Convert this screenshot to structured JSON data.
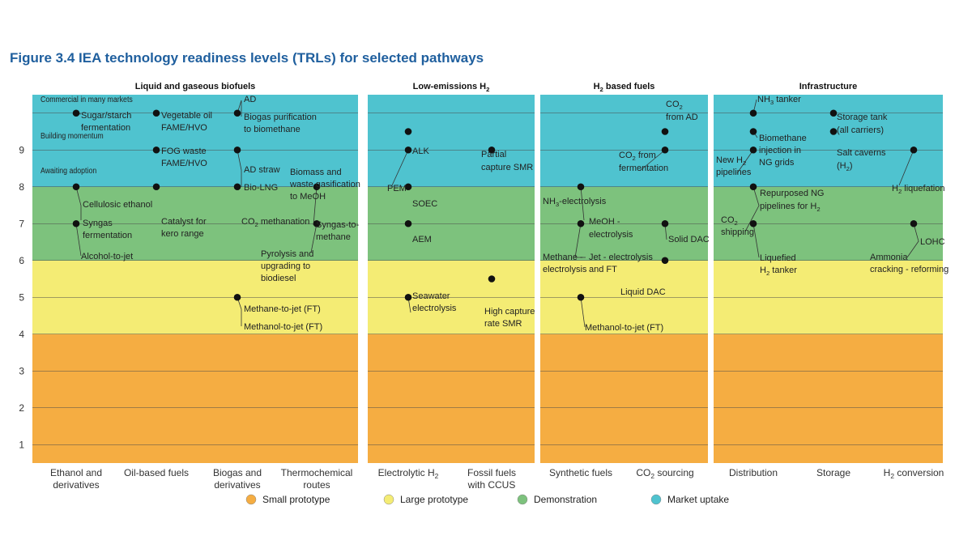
{
  "figure_title": "Figure 3.4  IEA technology readiness levels (TRLs) for selected pathways",
  "chart_data": {
    "type": "scatter",
    "ylim": [
      0.5,
      10.5
    ],
    "yticks": [
      1,
      2,
      3,
      4,
      5,
      6,
      7,
      8,
      9
    ],
    "grid": true,
    "bands": [
      {
        "name": "Small prototype",
        "from": 0.5,
        "to": 4.0,
        "color": "#f5ad42"
      },
      {
        "name": "Large prototype",
        "from": 4.0,
        "to": 6.0,
        "color": "#f4ec74"
      },
      {
        "name": "Demonstration",
        "from": 6.0,
        "to": 8.0,
        "color": "#7dc27d"
      },
      {
        "name": "Market uptake",
        "from": 8.0,
        "to": 10.5,
        "color": "#4fc3cf"
      }
    ],
    "level_labels": [
      {
        "text": "Commercial in many markets",
        "y": 10.2
      },
      {
        "text": "Building momentum",
        "y": 9.25
      },
      {
        "text": "Awaiting adoption",
        "y": 9.25
      }
    ],
    "panels": [
      {
        "title": "Liquid and gaseous biofuels",
        "categories": [
          "Ethanol and\nderivatives",
          "Oil-based fuels",
          "Biogas and\nderivatives",
          "Thermochemical\nroutes"
        ],
        "points": [
          {
            "cat": 0,
            "y": 10.0,
            "label": "Sugar/starch\nfermentation"
          },
          {
            "cat": 0,
            "y": 8.0,
            "label": "Cellulosic ethanol\nSyngas\nfermentation"
          },
          {
            "cat": 0,
            "y": 7.0,
            "label": "Alcohol-to-jet"
          },
          {
            "cat": 1,
            "y": 10.0,
            "label": "Vegetable oil\nFAME/HVO"
          },
          {
            "cat": 1,
            "y": 9.0,
            "label": "FOG waste\nFAME/HVO"
          },
          {
            "cat": 1,
            "y": 8.0,
            "label": "Catalyst for\nkero range"
          },
          {
            "cat": 2,
            "y": 10.0,
            "label": "AD\nBiogas purification\nto biomethane"
          },
          {
            "cat": 2,
            "y": 9.0,
            "label": "AD straw\nBio-LNG"
          },
          {
            "cat": 2,
            "y": 8.0,
            "label": "CO2 methanation"
          },
          {
            "cat": 2,
            "y": 5.0,
            "label": "Methane-to-jet (FT)\nMethanol-to-jet (FT)"
          },
          {
            "cat": 3,
            "y": 8.0,
            "label": "Biomass and\nwaste gasification\nto MeOH\nSyngas-to-\nmethane"
          },
          {
            "cat": 3,
            "y": 7.0,
            "label": "Pyrolysis and\nupgrading to\nbiodiesel"
          }
        ]
      },
      {
        "title": "Low-emissions H2",
        "categories": [
          "Electrolytic H2",
          "Fossil fuels\nwith CCUS"
        ],
        "points": [
          {
            "cat": 0,
            "y": 9.5,
            "label": "ALK"
          },
          {
            "cat": 0,
            "y": 9.0,
            "label": "PEM"
          },
          {
            "cat": 0,
            "y": 8.0,
            "label": "SOEC"
          },
          {
            "cat": 0,
            "y": 7.0,
            "label": "AEM"
          },
          {
            "cat": 0,
            "y": 5.0,
            "label": "Seawater\nelectrolysis"
          },
          {
            "cat": 1,
            "y": 9.0,
            "label": "Partial\ncapture SMR"
          },
          {
            "cat": 1,
            "y": 5.5,
            "label": "High capture\nrate SMR"
          }
        ]
      },
      {
        "title": "H2 based fuels",
        "categories": [
          "Synthetic fuels",
          "CO2 sourcing"
        ],
        "points": [
          {
            "cat": 0,
            "y": 8.0,
            "label": "NH3-electrolysis\nMeOH -\nelectrolysis"
          },
          {
            "cat": 0,
            "y": 7.0,
            "label": "Methane -\nelectrolysis\nJet - electrolysis\nand FT"
          },
          {
            "cat": 0,
            "y": 5.0,
            "label": "Methanol-to-jet (FT)"
          },
          {
            "cat": 1,
            "y": 9.5,
            "label": "CO2\nfrom AD"
          },
          {
            "cat": 1,
            "y": 9.0,
            "label": "CO2 from\nfermentation"
          },
          {
            "cat": 1,
            "y": 7.0,
            "label": "Solid DAC"
          },
          {
            "cat": 1,
            "y": 6.0,
            "label": "Liquid DAC"
          }
        ]
      },
      {
        "title": "Infrastructure",
        "categories": [
          "Distribution",
          "Storage",
          "H2 conversion"
        ],
        "points": [
          {
            "cat": 0,
            "y": 10.0,
            "label": "NH3 tanker"
          },
          {
            "cat": 0,
            "y": 9.5,
            "label": "Biomethane\ninjection in\nNG grids"
          },
          {
            "cat": 0,
            "y": 9.0,
            "label": "New H2\npipelines"
          },
          {
            "cat": 0,
            "y": 8.0,
            "label": "Repurposed NG\npipelines for H2\nCO2\nshipping"
          },
          {
            "cat": 0,
            "y": 7.0,
            "label": "Liquefied\nH2 tanker"
          },
          {
            "cat": 1,
            "y": 10.0,
            "label": "Storage tank\n(all carriers)"
          },
          {
            "cat": 1,
            "y": 9.5,
            "label": "Salt caverns\n(H2)"
          },
          {
            "cat": 2,
            "y": 9.0,
            "label": "H2 liquefation"
          },
          {
            "cat": 2,
            "y": 7.0,
            "label": "LOHC\nAmmonia\ncracking - reforming"
          }
        ]
      }
    ],
    "legend": [
      "Small prototype",
      "Large prototype",
      "Demonstration",
      "Market uptake"
    ],
    "legend_placement": "bottom"
  }
}
